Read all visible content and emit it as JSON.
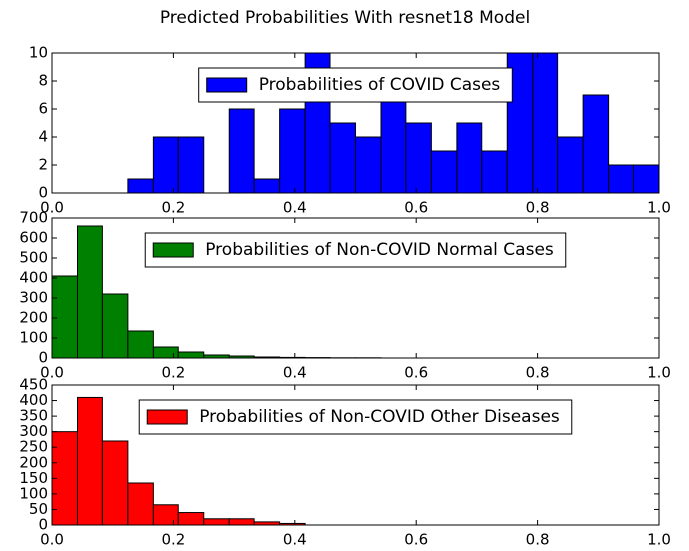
{
  "title": "Predicted Probabilities With resnet18 Model",
  "chart_data": [
    {
      "type": "histogram",
      "legend": "upper center",
      "bins": [
        0,
        0.042,
        0.083,
        0.125,
        0.167,
        0.208,
        0.25,
        0.292,
        0.333,
        0.375,
        0.417,
        0.458,
        0.5,
        0.542,
        0.583,
        0.625,
        0.667,
        0.708,
        0.75,
        0.792,
        0.833,
        0.875,
        0.917,
        0.958,
        1
      ],
      "series": [
        {
          "name": "Probabilities of COVID Cases",
          "color": "#0000ff",
          "values": [
            0,
            0,
            0,
            1,
            4,
            4,
            0,
            6,
            1,
            6,
            10,
            5,
            4,
            7,
            5,
            3,
            5,
            3,
            10,
            10,
            4,
            7,
            2,
            2
          ]
        }
      ],
      "xlim": [
        0,
        1
      ],
      "ylim": [
        0,
        10
      ],
      "xticks": [
        {
          "value": 0,
          "label": "0.0"
        },
        0.2,
        0.4,
        0.6,
        0.8,
        {
          "value": 1,
          "label": "1.0"
        }
      ],
      "yticks": [
        0,
        2,
        4,
        6,
        8,
        10
      ]
    },
    {
      "type": "histogram",
      "legend": "upper center",
      "bins": [
        0,
        0.042,
        0.083,
        0.125,
        0.167,
        0.208,
        0.25,
        0.292,
        0.333,
        0.375,
        0.417,
        0.458,
        0.5,
        0.542
      ],
      "series": [
        {
          "name": "Probabilities of Non-COVID Normal Cases",
          "color": "#008000",
          "values": [
            410,
            660,
            320,
            135,
            55,
            30,
            15,
            10,
            5,
            3,
            2,
            1,
            1
          ]
        }
      ],
      "xlim": [
        0,
        1
      ],
      "ylim": [
        0,
        700
      ],
      "xticks": [
        {
          "value": 0,
          "label": "0.0"
        },
        0.2,
        0.4,
        0.6,
        0.8,
        {
          "value": 1,
          "label": "1.0"
        }
      ],
      "yticks": [
        0,
        100,
        200,
        300,
        400,
        500,
        600,
        700
      ]
    },
    {
      "type": "histogram",
      "legend": "upper center",
      "bins": [
        0,
        0.042,
        0.083,
        0.125,
        0.167,
        0.208,
        0.25,
        0.292,
        0.333,
        0.375,
        0.417
      ],
      "series": [
        {
          "name": "Probabilities of Non-COVID Other Diseases",
          "color": "#ff0000",
          "values": [
            300,
            410,
            270,
            135,
            65,
            40,
            20,
            20,
            10,
            5
          ]
        }
      ],
      "xlim": [
        0,
        1
      ],
      "ylim": [
        0,
        450
      ],
      "xticks": [
        {
          "value": 0,
          "label": "0.0"
        },
        0.2,
        0.4,
        0.6,
        0.8,
        {
          "value": 1,
          "label": "1.0"
        }
      ],
      "yticks": [
        0,
        50,
        100,
        150,
        200,
        250,
        300,
        350,
        400,
        450
      ]
    }
  ]
}
